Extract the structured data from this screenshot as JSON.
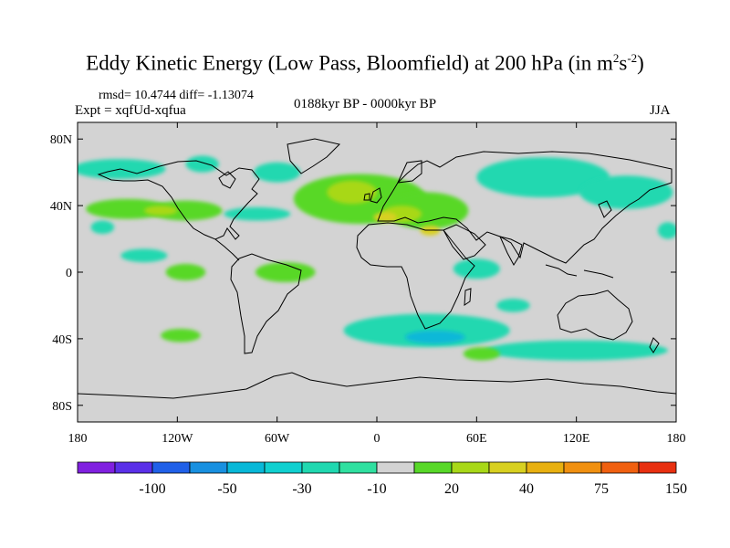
{
  "title": {
    "main": "Eddy Kinetic Energy (Low Pass, Bloomfield) at 200 hPa (in m",
    "sup1": "2",
    "mid": "s",
    "sup2": "-2",
    "end": ")"
  },
  "stats": {
    "rmsd_label": "rmsd=",
    "rmsd_value": "10.4744",
    "diff_label": "diff=",
    "diff_value": "-1.13074"
  },
  "experiment": "Expt = xqfUd-xqfua",
  "period": "0188kyr BP - 0000kyr BP",
  "season": "JJA",
  "map": {
    "lon_range": [
      -180,
      180
    ],
    "lat_range": [
      -90,
      90
    ],
    "background_color": "#d3d3d3",
    "lat_ticks": [
      {
        "label": "80N",
        "lat": 80
      },
      {
        "label": "40N",
        "lat": 40
      },
      {
        "label": "0",
        "lat": 0
      },
      {
        "label": "40S",
        "lat": -40
      },
      {
        "label": "80S",
        "lat": -80
      }
    ],
    "lon_ticks": [
      {
        "label": "180",
        "lon": -180
      },
      {
        "label": "120W",
        "lon": -120
      },
      {
        "label": "60W",
        "lon": -60
      },
      {
        "label": "0",
        "lon": 0
      },
      {
        "label": "60E",
        "lon": 60
      },
      {
        "label": "120E",
        "lon": 120
      },
      {
        "label": "180",
        "lon": 180
      }
    ],
    "anomaly_regions": [
      {
        "level": "-10",
        "color": "#20d8b0",
        "lon": -155,
        "lat": 62,
        "rlon": 28,
        "rlat": 6
      },
      {
        "level": "-10",
        "color": "#20d8b0",
        "lon": -105,
        "lat": 65,
        "rlon": 10,
        "rlat": 5
      },
      {
        "level": "-10",
        "color": "#20d8b0",
        "lon": -60,
        "lat": 60,
        "rlon": 14,
        "rlat": 6
      },
      {
        "level": "-10",
        "color": "#20d8b0",
        "lon": -72,
        "lat": 35,
        "rlon": 20,
        "rlat": 4
      },
      {
        "level": "-10",
        "color": "#20d8b0",
        "lon": 100,
        "lat": 57,
        "rlon": 40,
        "rlat": 12
      },
      {
        "level": "-10",
        "color": "#20d8b0",
        "lon": 150,
        "lat": 48,
        "rlon": 28,
        "rlat": 10
      },
      {
        "level": "-10",
        "color": "#20d8b0",
        "lon": 175,
        "lat": 25,
        "rlon": 6,
        "rlat": 5
      },
      {
        "level": "-10",
        "color": "#20d8b0",
        "lon": -165,
        "lat": 27,
        "rlon": 7,
        "rlat": 4
      },
      {
        "level": "-10",
        "color": "#20d8b0",
        "lon": -140,
        "lat": 10,
        "rlon": 14,
        "rlat": 4
      },
      {
        "level": "-10",
        "color": "#20d8b0",
        "lon": 60,
        "lat": 2,
        "rlon": 14,
        "rlat": 6
      },
      {
        "level": "-10",
        "color": "#20d8b0",
        "lon": 30,
        "lat": -35,
        "rlon": 50,
        "rlat": 10
      },
      {
        "level": "-10",
        "color": "#20d8b0",
        "lon": 120,
        "lat": -47,
        "rlon": 55,
        "rlat": 6
      },
      {
        "level": "-10",
        "color": "#20d8b0",
        "lon": 82,
        "lat": -20,
        "rlon": 10,
        "rlat": 4
      },
      {
        "level": "-30",
        "color": "#08b8d8",
        "lon": 35,
        "lat": -39,
        "rlon": 18,
        "rlat": 4
      },
      {
        "level": "20",
        "color": "#58d828",
        "lon": -150,
        "lat": 38,
        "rlon": 25,
        "rlat": 6
      },
      {
        "level": "20",
        "color": "#58d828",
        "lon": -115,
        "lat": 37,
        "rlon": 22,
        "rlat": 6
      },
      {
        "level": "20",
        "color": "#58d828",
        "lon": -10,
        "lat": 44,
        "rlon": 40,
        "rlat": 15
      },
      {
        "level": "20",
        "color": "#58d828",
        "lon": 30,
        "lat": 37,
        "rlon": 25,
        "rlat": 11
      },
      {
        "level": "20",
        "color": "#58d828",
        "lon": -115,
        "lat": 0,
        "rlon": 12,
        "rlat": 5
      },
      {
        "level": "20",
        "color": "#58d828",
        "lon": -55,
        "lat": 0,
        "rlon": 18,
        "rlat": 6
      },
      {
        "level": "20",
        "color": "#58d828",
        "lon": -118,
        "lat": -38,
        "rlon": 12,
        "rlat": 4
      },
      {
        "level": "20",
        "color": "#58d828",
        "lon": 63,
        "lat": -49,
        "rlon": 11,
        "rlat": 4
      },
      {
        "level": "30",
        "color": "#a8d818",
        "lon": -15,
        "lat": 48,
        "rlon": 15,
        "rlat": 7
      },
      {
        "level": "30",
        "color": "#a8d818",
        "lon": 15,
        "lat": 35,
        "rlon": 12,
        "rlat": 5
      },
      {
        "level": "30",
        "color": "#a8d818",
        "lon": -130,
        "lat": 37,
        "rlon": 10,
        "rlat": 3
      },
      {
        "level": "40",
        "color": "#d8d020",
        "lon": 5,
        "lat": 33,
        "rlon": 7,
        "rlat": 3
      },
      {
        "level": "40",
        "color": "#d8d020",
        "lon": 32,
        "lat": 25,
        "rlon": 6,
        "rlat": 3
      }
    ]
  },
  "colorbar": {
    "labels": [
      "-100",
      "-50",
      "-30",
      "-10",
      "20",
      "40",
      "75",
      "150"
    ],
    "colors": [
      "#8020e0",
      "#5a30e8",
      "#2060e8",
      "#1890e0",
      "#08b8d8",
      "#10d0d0",
      "#20d8b0",
      "#30e0a0",
      "#d3d3d3",
      "#58d828",
      "#a8d818",
      "#d8d020",
      "#e8b010",
      "#f09010",
      "#f06010",
      "#e83010"
    ]
  }
}
